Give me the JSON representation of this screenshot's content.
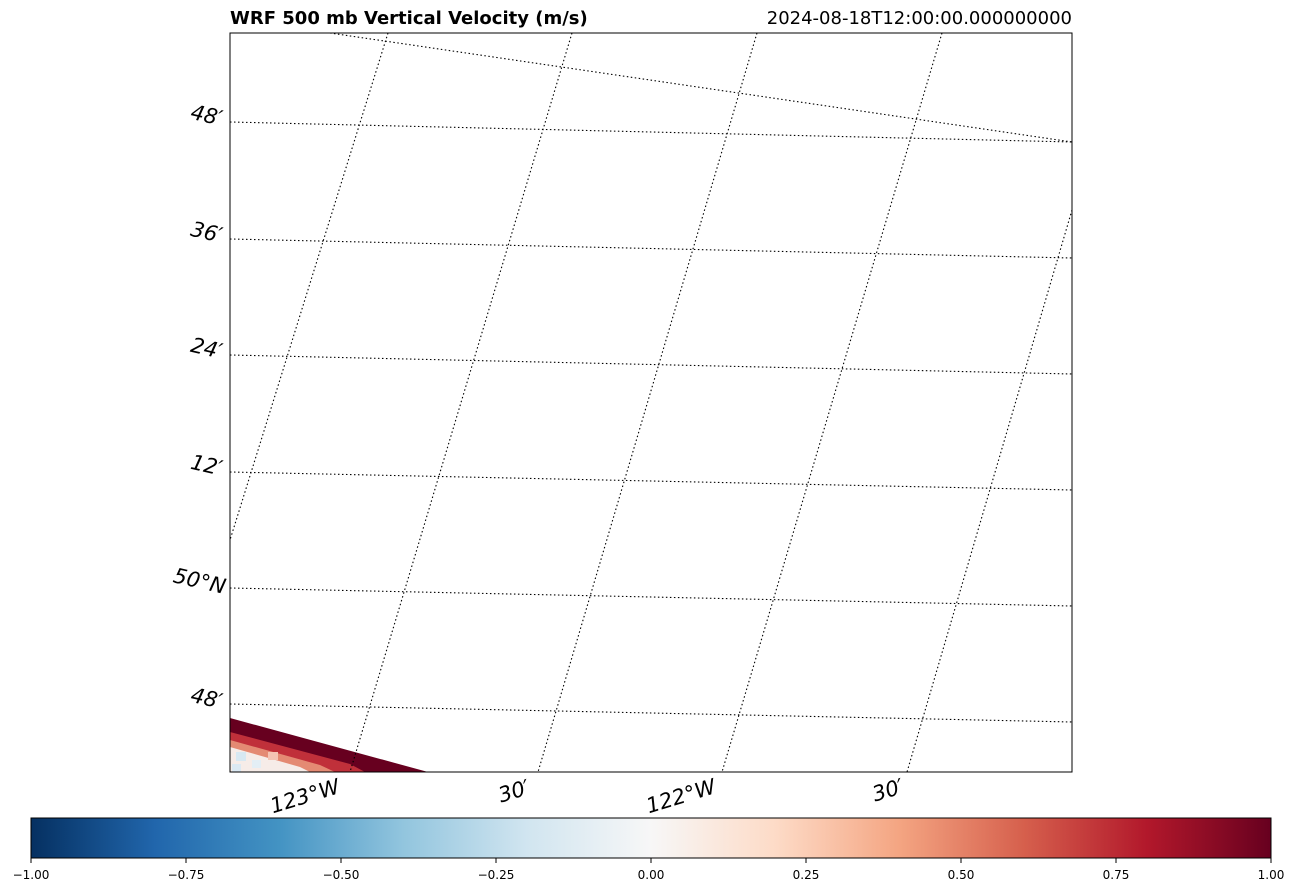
{
  "chart_data": {
    "type": "heatmap",
    "title": "WRF 500 mb Vertical Velocity (m/s)",
    "subtitle": "2024-08-18T12:00:00.000000000",
    "variable_units": "m/s",
    "colormap": "RdBu_r",
    "colormap_stops": [
      "#053061",
      "#2166ac",
      "#4393c3",
      "#92c5de",
      "#d1e5f0",
      "#f7f7f7",
      "#fddbc7",
      "#f4a582",
      "#d6604d",
      "#b2182b",
      "#67001f"
    ],
    "colorbar": {
      "range": [
        -1.0,
        1.0
      ],
      "ticks": [
        -1.0,
        -0.75,
        -0.5,
        -0.25,
        0.0,
        0.25,
        0.5,
        0.75,
        1.0
      ],
      "tick_labels": [
        "−1.00",
        "−0.75",
        "−0.50",
        "−0.25",
        "0.00",
        "0.25",
        "0.50",
        "0.75",
        "1.00"
      ],
      "placement": "bottom-horizontal"
    },
    "gridlines": {
      "style": "dotted",
      "color": "#000000",
      "latitudes": [
        49.8,
        50.0,
        50.2,
        50.4,
        50.6,
        50.8
      ],
      "latitude_labels": [
        "48′",
        "50°N",
        "12′",
        "24′",
        "36′",
        "48′"
      ],
      "longitudes": [
        -123.0,
        -122.5,
        -122.0,
        -121.5
      ],
      "longitude_labels": [
        "123°W",
        "30′",
        "122°W",
        "30′"
      ]
    },
    "field_region": {
      "location": "bottom-left corner",
      "description_values": "strong positive band (~1.0) along domain edge, near-zero to slightly negative interior"
    }
  }
}
